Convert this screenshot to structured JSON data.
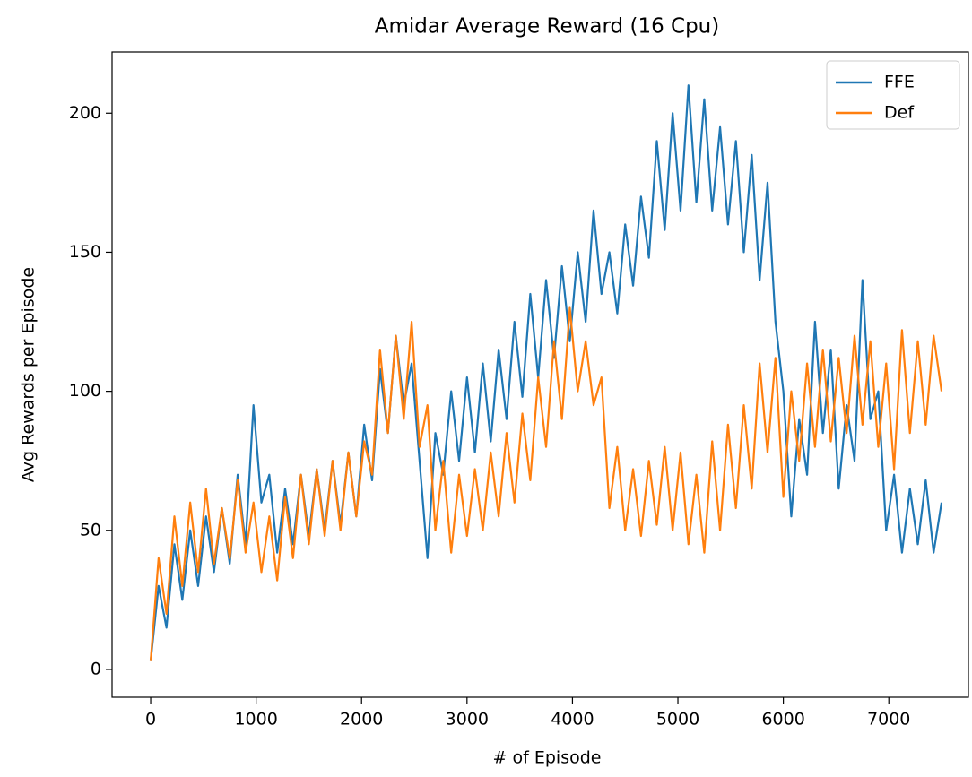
{
  "chart_data": {
    "type": "line",
    "title": "Amidar Average Reward (16 Cpu)",
    "xlabel": "# of Episode",
    "ylabel": "Avg Rewards per Episode",
    "x": [
      0,
      75,
      150,
      225,
      300,
      375,
      450,
      525,
      600,
      675,
      750,
      825,
      900,
      975,
      1050,
      1125,
      1200,
      1275,
      1350,
      1425,
      1500,
      1575,
      1650,
      1725,
      1800,
      1875,
      1950,
      2025,
      2100,
      2175,
      2250,
      2325,
      2400,
      2475,
      2550,
      2625,
      2700,
      2775,
      2850,
      2925,
      3000,
      3075,
      3150,
      3225,
      3300,
      3375,
      3450,
      3525,
      3600,
      3675,
      3750,
      3825,
      3900,
      3975,
      4050,
      4125,
      4200,
      4275,
      4350,
      4425,
      4500,
      4575,
      4650,
      4725,
      4800,
      4875,
      4950,
      5025,
      5100,
      5175,
      5250,
      5325,
      5400,
      5475,
      5550,
      5625,
      5700,
      5775,
      5850,
      5925,
      6000,
      6075,
      6150,
      6225,
      6300,
      6375,
      6450,
      6525,
      6600,
      6675,
      6750,
      6825,
      6900,
      6975,
      7050,
      7125,
      7200,
      7275,
      7350,
      7425,
      7500
    ],
    "series": [
      {
        "name": "FFE",
        "color": "#1f77b4",
        "values": [
          3,
          30,
          15,
          45,
          25,
          50,
          30,
          55,
          35,
          58,
          38,
          70,
          45,
          95,
          60,
          70,
          42,
          65,
          45,
          70,
          48,
          72,
          50,
          75,
          52,
          78,
          55,
          88,
          68,
          108,
          85,
          120,
          95,
          110,
          75,
          40,
          85,
          70,
          100,
          75,
          105,
          78,
          110,
          82,
          115,
          90,
          125,
          98,
          135,
          105,
          140,
          112,
          145,
          118,
          150,
          125,
          165,
          135,
          150,
          128,
          160,
          138,
          170,
          148,
          190,
          158,
          200,
          165,
          210,
          168,
          205,
          165,
          195,
          160,
          190,
          150,
          185,
          140,
          175,
          125,
          100,
          55,
          90,
          70,
          125,
          85,
          115,
          65,
          95,
          75,
          140,
          90,
          100,
          50,
          70,
          42,
          65,
          45,
          68,
          42,
          60
        ]
      },
      {
        "name": "Def",
        "color": "#ff7f0e",
        "values": [
          3,
          40,
          20,
          55,
          30,
          60,
          35,
          65,
          38,
          58,
          40,
          68,
          42,
          60,
          35,
          55,
          32,
          62,
          40,
          70,
          45,
          72,
          48,
          75,
          50,
          78,
          55,
          82,
          70,
          115,
          85,
          120,
          90,
          125,
          80,
          95,
          50,
          75,
          42,
          70,
          48,
          72,
          50,
          78,
          55,
          85,
          60,
          92,
          68,
          105,
          80,
          118,
          90,
          130,
          100,
          118,
          95,
          105,
          58,
          80,
          50,
          72,
          48,
          75,
          52,
          80,
          50,
          78,
          45,
          70,
          42,
          82,
          50,
          88,
          58,
          95,
          65,
          110,
          78,
          112,
          62,
          100,
          75,
          110,
          80,
          115,
          82,
          112,
          85,
          120,
          88,
          118,
          80,
          110,
          72,
          122,
          85,
          118,
          88,
          120,
          100
        ]
      }
    ],
    "xlim": [
      -366,
      7755
    ],
    "xticks": [
      0,
      1000,
      2000,
      3000,
      4000,
      5000,
      6000,
      7000
    ],
    "ylim": [
      -10,
      222
    ],
    "yticks": [
      0,
      50,
      100,
      150,
      200
    ],
    "legend": "upper right"
  }
}
